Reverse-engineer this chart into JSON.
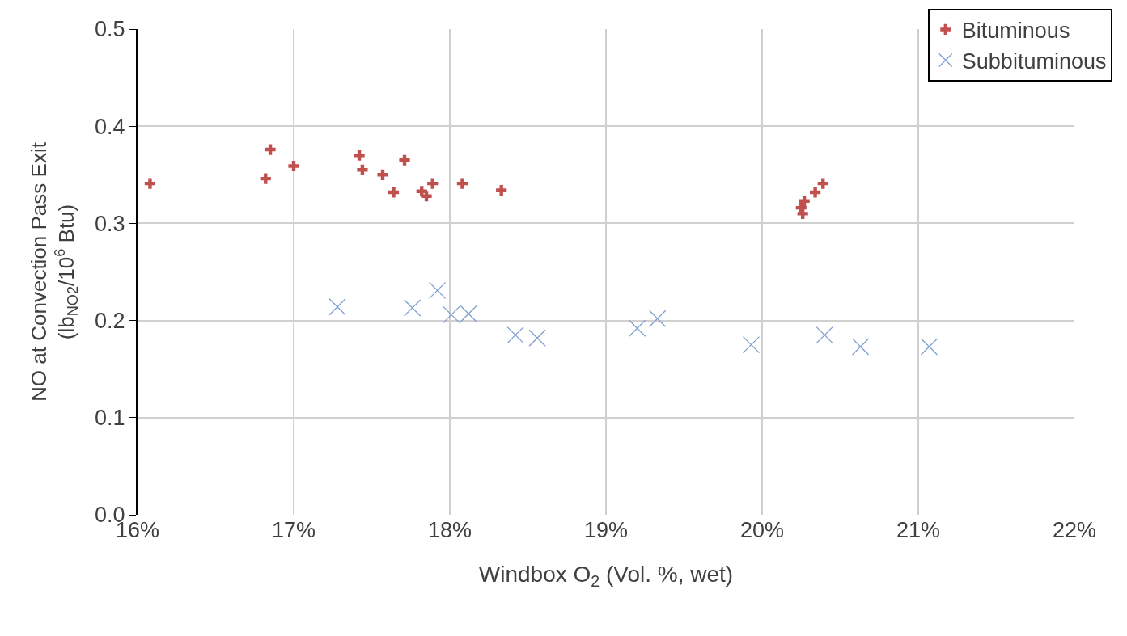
{
  "chart_data": {
    "type": "scatter",
    "xlabel": "Windbox O$_{2}$ (Vol. %, wet)",
    "ylabel": "NO at Convection Pass Exit\n(lb$_{NO2}$/10$^{6}$ Btu)",
    "xlim": [
      16,
      22
    ],
    "xticks": [
      {
        "value": 16,
        "label": "16%"
      },
      {
        "value": 17,
        "label": "17%"
      },
      {
        "value": 18,
        "label": "18%"
      },
      {
        "value": 19,
        "label": "19%"
      },
      {
        "value": 20,
        "label": "20%"
      },
      {
        "value": 21,
        "label": "21%"
      },
      {
        "value": 22,
        "label": "22%"
      }
    ],
    "ylim": [
      0,
      0.5
    ],
    "yticks": [
      {
        "value": 0,
        "label": "0.0"
      },
      {
        "value": 0.1,
        "label": "0.1"
      },
      {
        "value": 0.2,
        "label": "0.2"
      },
      {
        "value": 0.3,
        "label": "0.3"
      },
      {
        "value": 0.4,
        "label": "0.4"
      },
      {
        "value": 0.5,
        "label": "0.5"
      }
    ],
    "grid": true,
    "legend": "top right",
    "series": [
      {
        "name": "Bituminous",
        "color": "#c0504d",
        "marker": "cross",
        "x": [
          16.08,
          16.85,
          16.82,
          17.0,
          17.42,
          17.44,
          17.57,
          17.71,
          17.64,
          17.82,
          17.85,
          17.89,
          18.08,
          18.33,
          20.25,
          20.26,
          20.27,
          20.34,
          20.39
        ],
        "values": [
          0.341,
          0.376,
          0.346,
          0.359,
          0.37,
          0.355,
          0.35,
          0.365,
          0.332,
          0.333,
          0.328,
          0.341,
          0.341,
          0.334,
          0.316,
          0.31,
          0.323,
          0.332,
          0.341
        ]
      },
      {
        "name": "Subbituminous",
        "color": "#7f9fcf",
        "marker": "x",
        "x": [
          17.28,
          17.76,
          17.92,
          18.01,
          18.12,
          18.42,
          18.56,
          19.2,
          19.33,
          19.93,
          20.4,
          20.63,
          21.07
        ],
        "values": [
          0.214,
          0.213,
          0.231,
          0.206,
          0.207,
          0.185,
          0.182,
          0.192,
          0.202,
          0.175,
          0.185,
          0.173,
          0.173
        ]
      }
    ]
  }
}
